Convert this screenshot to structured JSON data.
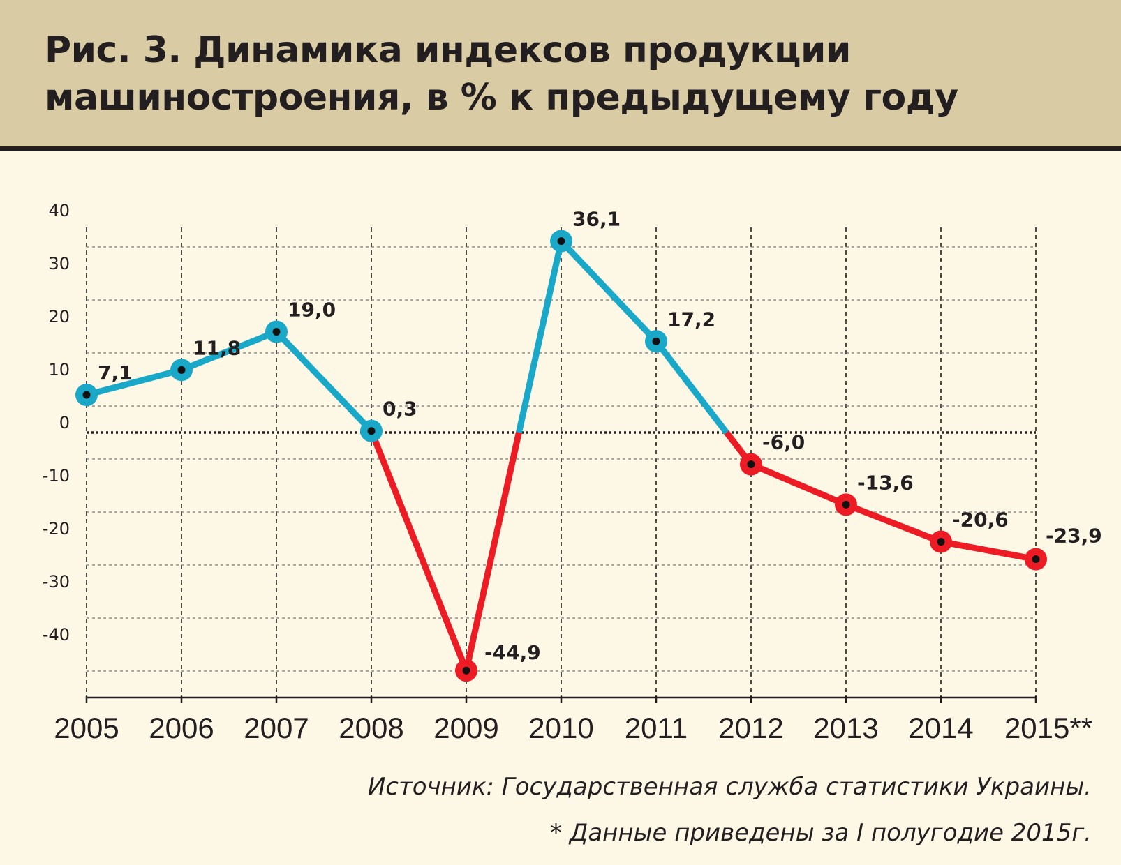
{
  "title": "Рис. 3. Динамика индексов продукции машиностроения, в % к предыдущему году",
  "colors": {
    "positive": "#1aa8c9",
    "negative": "#ed1c24",
    "header_bg": "#d9cca5",
    "page_bg": "#fdf8e6",
    "text": "#231f20"
  },
  "chart_data": {
    "type": "line",
    "title": "Рис. 3. Динамика индексов продукции машиностроения, в % к предыдущему году",
    "categories": [
      "2005",
      "2006",
      "2007",
      "2008",
      "2009",
      "2010",
      "2011",
      "2012",
      "2013",
      "2014",
      "2015**"
    ],
    "series": [
      {
        "values": [
          7.1,
          11.8,
          19.0,
          0.3,
          -44.9,
          36.1,
          17.2,
          -6.0,
          -13.6,
          -20.6,
          -23.9
        ]
      }
    ],
    "data_labels": [
      "7,1",
      "11,8",
      "19,0",
      "0,3",
      "-44,9",
      "36,1",
      "17,2",
      "-6,0",
      "-13,6",
      "-20,6",
      "-23,9"
    ],
    "yticks": [
      40,
      30,
      20,
      10,
      0,
      -10,
      -20,
      -30,
      -40
    ],
    "ytick_labels": [
      "40",
      "30",
      "20",
      "10",
      "0",
      "-10",
      "-20",
      "-30",
      "-40"
    ],
    "ylim": [
      -50,
      40
    ],
    "xlabel": "",
    "ylabel": "",
    "grid": true,
    "line_color_rule": "above zero blue, below zero red"
  },
  "source": "Источник: Государственная служба статистики Украины.",
  "footnote": "* Данные приведены за I полугодие 2015г."
}
